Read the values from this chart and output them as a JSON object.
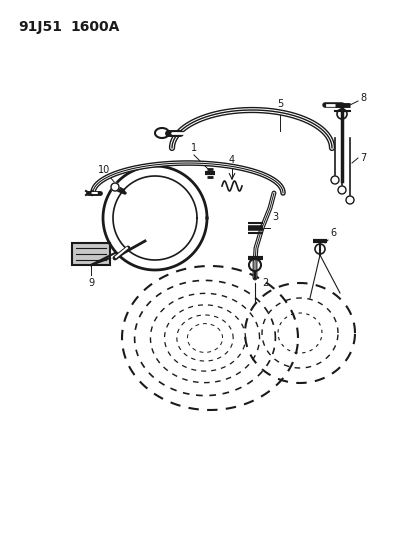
{
  "title_part1": "91J51",
  "title_part2": "1600A",
  "bg_color": "#ffffff",
  "line_color": "#1a1a1a",
  "fig_width": 4.14,
  "fig_height": 5.33,
  "dpi": 100
}
